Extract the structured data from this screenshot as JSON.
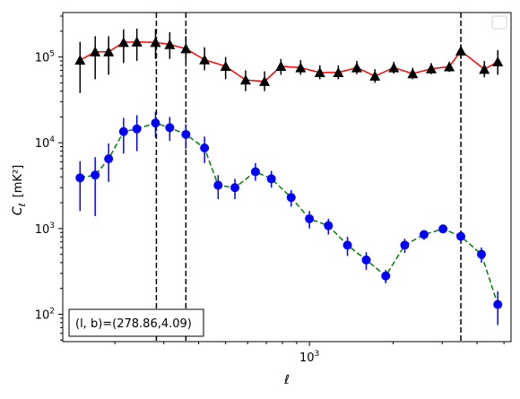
{
  "chart_data": {
    "type": "scatter",
    "xlabel": "ℓ",
    "ylabel_main": "C",
    "ylabel_sub": "ℓ",
    "ylabel_unit": "[mK²]",
    "x_scale": "log",
    "y_scale": "log",
    "xlim": [
      130,
      5300
    ],
    "ylim": [
      48,
      330000
    ],
    "x_major_ticks": [
      {
        "value": 1000,
        "base": "10",
        "exp": "3"
      }
    ],
    "y_major_ticks": [
      {
        "value": 100,
        "base": "10",
        "exp": "2"
      },
      {
        "value": 1000,
        "base": "10",
        "exp": "3"
      },
      {
        "value": 10000,
        "base": "10",
        "exp": "4"
      },
      {
        "value": 100000,
        "base": "10",
        "exp": "5"
      }
    ],
    "legend": {
      "placement": "top-right",
      "entries": []
    },
    "annotation": "(l, b)=(278.86,4.09)",
    "vlines": [
      {
        "x": 282
      },
      {
        "x": 360
      },
      {
        "x": 3500
      }
    ],
    "series": [
      {
        "marker": "triangle",
        "marker_color": "#000000",
        "line_color": "#ff0000",
        "line_style": "solid",
        "points": [
          {
            "x": 150,
            "y": 92000,
            "lo": 38000,
            "hi": 150000
          },
          {
            "x": 170,
            "y": 115000,
            "lo": 55000,
            "hi": 175000
          },
          {
            "x": 190,
            "y": 115000,
            "lo": 62000,
            "hi": 175000
          },
          {
            "x": 215,
            "y": 148000,
            "lo": 85000,
            "hi": 210000
          },
          {
            "x": 240,
            "y": 150000,
            "lo": 90000,
            "hi": 215000
          },
          {
            "x": 280,
            "y": 148000,
            "lo": 95000,
            "hi": 210000
          },
          {
            "x": 315,
            "y": 140000,
            "lo": 95000,
            "hi": 195000
          },
          {
            "x": 360,
            "y": 125000,
            "lo": 90000,
            "hi": 175000
          },
          {
            "x": 420,
            "y": 93000,
            "lo": 70000,
            "hi": 130000
          },
          {
            "x": 500,
            "y": 78000,
            "lo": 55000,
            "hi": 100000
          },
          {
            "x": 590,
            "y": 54000,
            "lo": 40000,
            "hi": 70000
          },
          {
            "x": 690,
            "y": 52000,
            "lo": 40000,
            "hi": 68000
          },
          {
            "x": 790,
            "y": 78000,
            "lo": 62000,
            "hi": 95000
          },
          {
            "x": 930,
            "y": 75000,
            "lo": 62000,
            "hi": 92000
          },
          {
            "x": 1090,
            "y": 66000,
            "lo": 55000,
            "hi": 80000
          },
          {
            "x": 1270,
            "y": 66000,
            "lo": 55000,
            "hi": 80000
          },
          {
            "x": 1480,
            "y": 75000,
            "lo": 63000,
            "hi": 90000
          },
          {
            "x": 1720,
            "y": 60000,
            "lo": 50000,
            "hi": 72000
          },
          {
            "x": 2010,
            "y": 75000,
            "lo": 64000,
            "hi": 88000
          },
          {
            "x": 2350,
            "y": 64000,
            "lo": 55000,
            "hi": 75000
          },
          {
            "x": 2740,
            "y": 73000,
            "lo": 63000,
            "hi": 85000
          },
          {
            "x": 3180,
            "y": 77000,
            "lo": 67000,
            "hi": 88000
          },
          {
            "x": 3500,
            "y": 118000,
            "lo": 95000,
            "hi": 140000
          },
          {
            "x": 4250,
            "y": 72000,
            "lo": 58000,
            "hi": 90000
          },
          {
            "x": 4750,
            "y": 88000,
            "lo": 62000,
            "hi": 120000
          }
        ]
      },
      {
        "marker": "circle",
        "marker_color": "#0000ff",
        "line_color": "#008000",
        "line_style": "dashed",
        "points": [
          {
            "x": 150,
            "y": 3900,
            "lo": 1600,
            "hi": 6100
          },
          {
            "x": 170,
            "y": 4200,
            "lo": 1400,
            "hi": 6800
          },
          {
            "x": 190,
            "y": 6500,
            "lo": 3500,
            "hi": 9800
          },
          {
            "x": 215,
            "y": 13500,
            "lo": 7500,
            "hi": 19500
          },
          {
            "x": 240,
            "y": 14500,
            "lo": 8000,
            "hi": 21000
          },
          {
            "x": 280,
            "y": 17000,
            "lo": 11500,
            "hi": 23000
          },
          {
            "x": 315,
            "y": 15000,
            "lo": 10500,
            "hi": 20000
          },
          {
            "x": 360,
            "y": 12500,
            "lo": 8500,
            "hi": 16500
          },
          {
            "x": 420,
            "y": 8700,
            "lo": 5800,
            "hi": 11800
          },
          {
            "x": 470,
            "y": 3200,
            "lo": 2200,
            "hi": 4200
          },
          {
            "x": 540,
            "y": 3000,
            "lo": 2200,
            "hi": 3800
          },
          {
            "x": 640,
            "y": 4600,
            "lo": 3600,
            "hi": 5800
          },
          {
            "x": 730,
            "y": 3800,
            "lo": 3000,
            "hi": 4700
          },
          {
            "x": 860,
            "y": 2300,
            "lo": 1800,
            "hi": 2800
          },
          {
            "x": 1000,
            "y": 1300,
            "lo": 1000,
            "hi": 1600
          },
          {
            "x": 1170,
            "y": 1080,
            "lo": 850,
            "hi": 1300
          },
          {
            "x": 1370,
            "y": 640,
            "lo": 480,
            "hi": 800
          },
          {
            "x": 1600,
            "y": 430,
            "lo": 330,
            "hi": 530
          },
          {
            "x": 1880,
            "y": 280,
            "lo": 230,
            "hi": 330
          },
          {
            "x": 2200,
            "y": 640,
            "lo": 520,
            "hi": 760
          },
          {
            "x": 2580,
            "y": 850,
            "lo": 740,
            "hi": 960
          },
          {
            "x": 3020,
            "y": 990,
            "lo": 880,
            "hi": 1100
          },
          {
            "x": 3500,
            "y": 810,
            "lo": 700,
            "hi": 930
          },
          {
            "x": 4150,
            "y": 500,
            "lo": 400,
            "hi": 600
          },
          {
            "x": 4750,
            "y": 130,
            "lo": 75,
            "hi": 185
          }
        ]
      }
    ]
  }
}
